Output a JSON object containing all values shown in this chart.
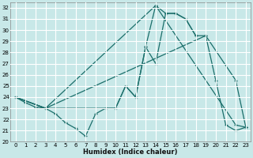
{
  "bg_color": "#c8e8e8",
  "grid_color": "#ffffff",
  "line_color": "#1a6e6a",
  "xlim": [
    -0.5,
    23.5
  ],
  "ylim": [
    20,
    32.5
  ],
  "yticks": [
    20,
    21,
    22,
    23,
    24,
    25,
    26,
    27,
    28,
    29,
    30,
    31,
    32
  ],
  "xticks": [
    0,
    1,
    2,
    3,
    4,
    5,
    6,
    7,
    8,
    9,
    10,
    11,
    12,
    13,
    14,
    15,
    16,
    17,
    18,
    19,
    20,
    21,
    22,
    23
  ],
  "xlabel": "Humidex (Indice chaleur)",
  "line1_x": [
    0,
    1,
    2,
    3,
    4,
    5,
    6,
    7,
    8,
    9,
    10,
    11,
    12,
    13,
    14,
    15,
    16,
    17,
    18
  ],
  "line1_y": [
    24.0,
    23.5,
    23.1,
    23.0,
    22.5,
    21.7,
    21.2,
    20.5,
    22.5,
    23.0,
    23.0,
    25.0,
    24.0,
    28.5,
    32.2,
    31.5,
    31.5,
    31.0,
    29.5
  ],
  "line2_x": [
    0,
    3,
    10,
    11,
    12,
    13,
    14,
    15,
    16,
    17,
    18,
    19,
    20,
    21,
    22,
    23
  ],
  "line2_y": [
    24.0,
    23.0,
    23.0,
    25.0,
    24.0,
    28.5,
    27.0,
    31.5,
    31.5,
    31.0,
    29.5,
    29.5,
    25.5,
    21.5,
    21.0,
    21.3
  ],
  "line3_x": [
    0,
    3,
    19,
    22,
    23
  ],
  "line3_y": [
    24.0,
    23.0,
    29.5,
    25.5,
    21.3
  ],
  "line4_x": [
    0,
    3,
    14,
    22,
    23
  ],
  "line4_y": [
    24.0,
    23.0,
    32.2,
    21.5,
    21.3
  ]
}
